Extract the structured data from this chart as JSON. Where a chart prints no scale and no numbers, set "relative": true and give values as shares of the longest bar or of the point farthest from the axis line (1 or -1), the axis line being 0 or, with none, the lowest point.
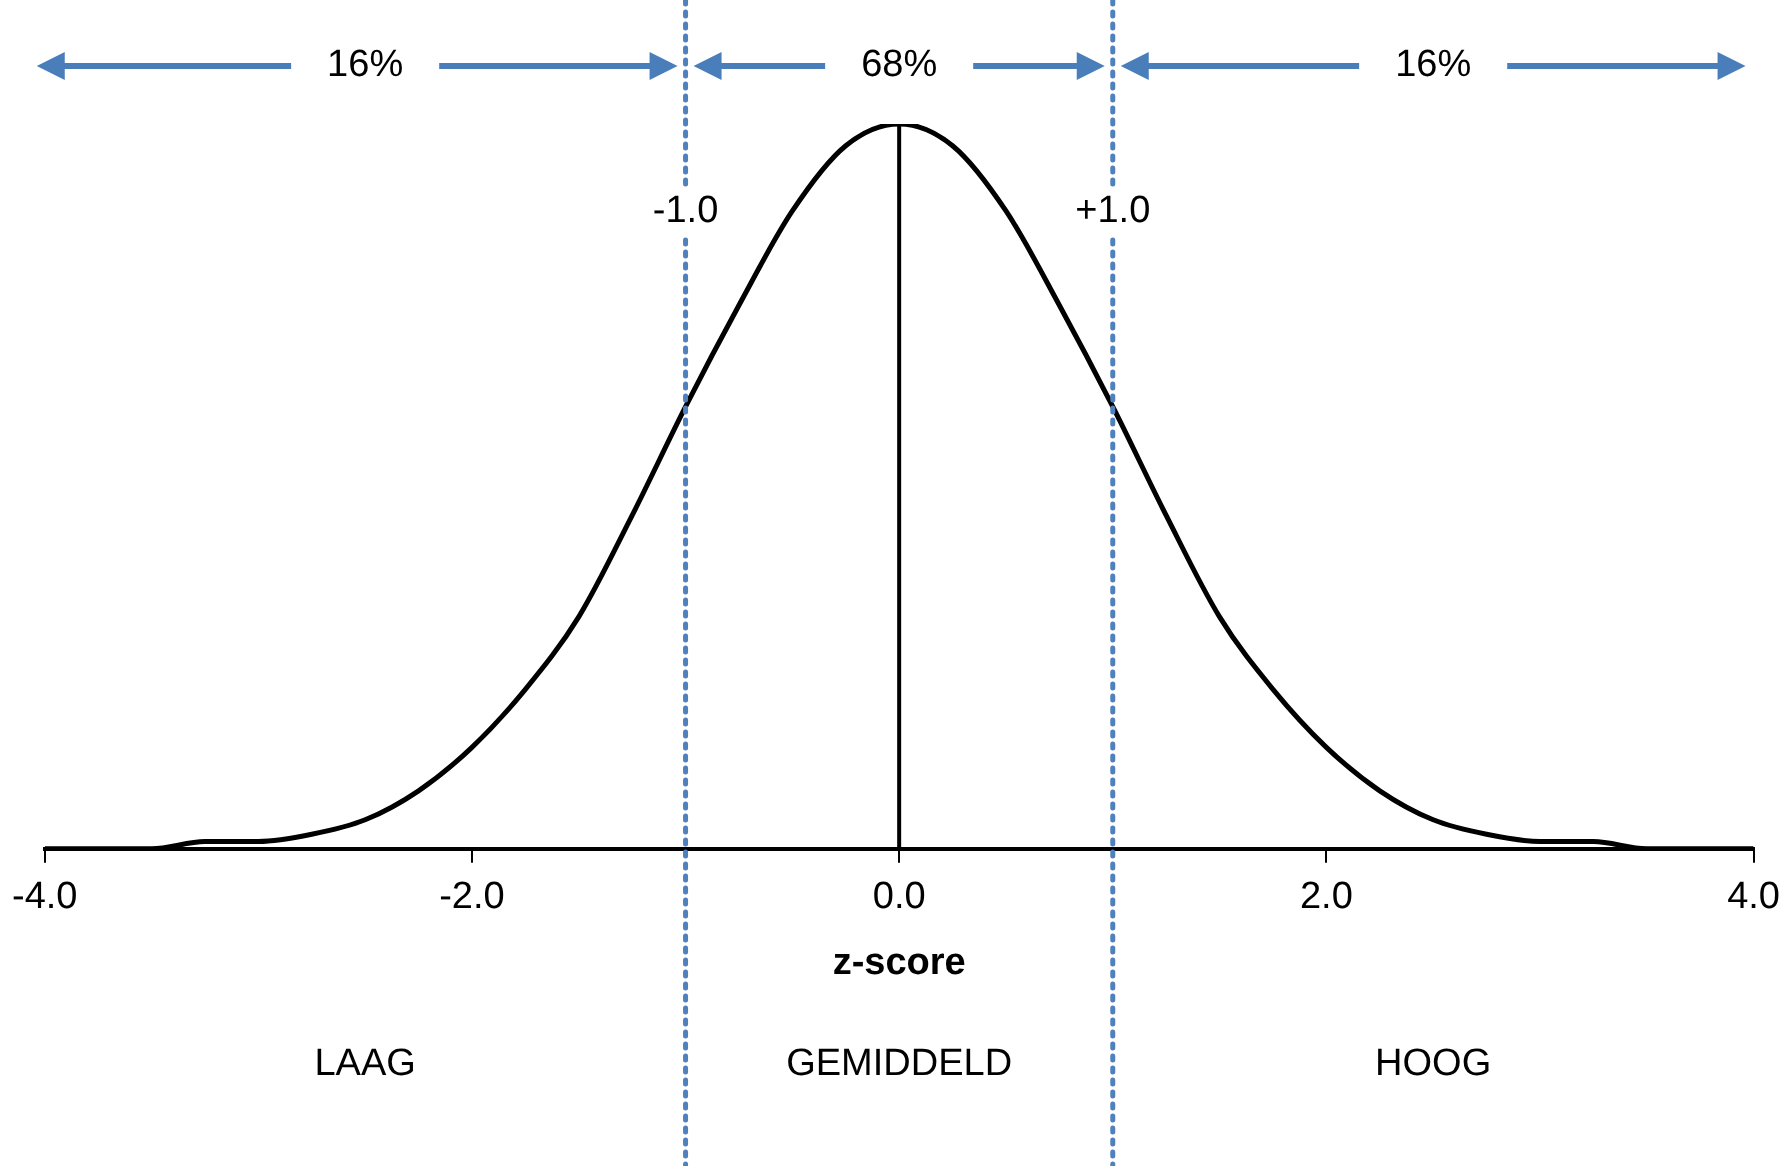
{
  "chart_data": {
    "type": "line",
    "relative": true,
    "xlabel": "z-score",
    "color": "#000000",
    "marker": "none",
    "line_style": "solid",
    "grid": false,
    "tick_labels": "x",
    "x": [
      -4,
      -3.75,
      -3.5,
      -3.25,
      -3,
      -2.75,
      -2.5,
      -2.25,
      -2,
      -1.75,
      -1.5,
      -1.25,
      -1,
      -0.75,
      -0.5,
      -0.25,
      0,
      0.25,
      0.5,
      0.75,
      1,
      1.25,
      1.5,
      1.75,
      2,
      2.25,
      2.5,
      2.75,
      3,
      3.25,
      3.5,
      3.75,
      4
    ],
    "values": [
      0,
      0,
      0,
      0.01,
      0.01,
      0.02,
      0.04,
      0.08,
      0.14,
      0.22,
      0.32,
      0.46,
      0.61,
      0.75,
      0.88,
      0.97,
      1,
      0.97,
      0.88,
      0.75,
      0.61,
      0.46,
      0.32,
      0.22,
      0.14,
      0.08,
      0.04,
      0.02,
      0.01,
      0.01,
      0,
      0,
      0
    ],
    "xlim": [
      -4,
      4
    ],
    "xticks": [
      {
        "value": -4,
        "label": "-4.0"
      },
      {
        "value": -2,
        "label": "-2.0"
      },
      {
        "value": 0,
        "label": "0.0"
      },
      {
        "value": 2,
        "label": "2.0"
      },
      {
        "value": 4,
        "label": "4.0"
      }
    ],
    "ref_lines": [
      {
        "axis": "x",
        "value": -1,
        "label": "-1.0",
        "color": "#4f81bd",
        "line_style": "dotted"
      },
      {
        "axis": "x",
        "value": 1,
        "label": "+1.0",
        "color": "#4f81bd",
        "line_style": "dotted"
      },
      {
        "axis": "x",
        "value": 0,
        "color": "#000000",
        "line_style": "solid"
      }
    ],
    "annotations": [
      "16%",
      "68%",
      "16%",
      "LAAG",
      "GEMIDDELD",
      "HOOG"
    ]
  }
}
